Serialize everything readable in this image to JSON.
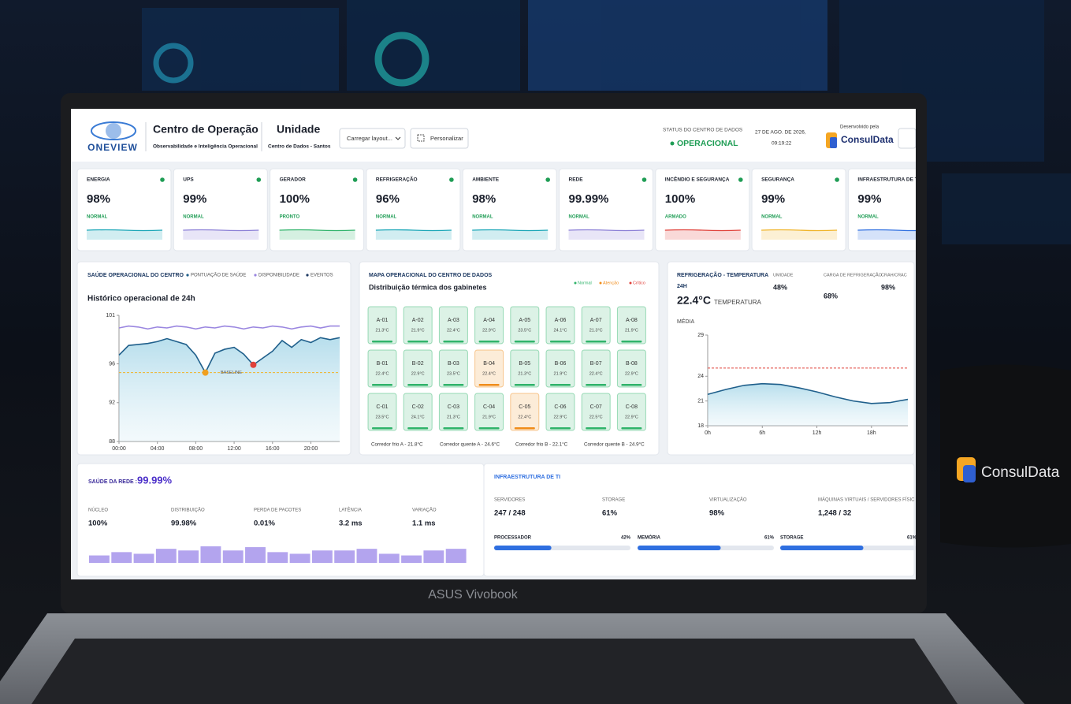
{
  "header": {
    "logo": "ONEVIEW",
    "title": "Centro de Operação",
    "subtitle": "Observabilidade e Inteligência Operacional",
    "unit_title": "Unidade",
    "unit_name": "Centro de Dados - Santos",
    "buttons": [
      "Carregar layout...",
      "Personalizar"
    ],
    "status_label": "STATUS DO CENTRO DE DADOS",
    "status": "OPERACIONAL",
    "date": "27 DE AGO. DE 2026,",
    "time": "09:19:22",
    "developer_label": "Desenvolvido pela",
    "developer": "ConsulData"
  },
  "kpis": [
    {
      "name": "ENERGIA",
      "value": "98%",
      "status": "NORMAL",
      "color": "#1aa6b7"
    },
    {
      "name": "UPS",
      "value": "99%",
      "status": "NORMAL",
      "color": "#8b7fd6"
    },
    {
      "name": "GERADOR",
      "value": "100%",
      "status": "PRONTO",
      "color": "#2fb36a"
    },
    {
      "name": "REFRIGERAÇÃO",
      "value": "96%",
      "status": "NORMAL",
      "color": "#1aa6b7"
    },
    {
      "name": "AMBIENTE",
      "value": "98%",
      "status": "NORMAL",
      "color": "#1aa6b7"
    },
    {
      "name": "REDE",
      "value": "99.99%",
      "status": "NORMAL",
      "color": "#8b7fd6"
    },
    {
      "name": "INCÊNDIO E SEGURANÇA",
      "value": "100%",
      "status": "ARMADO",
      "color": "#e0413a"
    },
    {
      "name": "SEGURANÇA",
      "value": "99%",
      "status": "NORMAL",
      "color": "#f0b429"
    },
    {
      "name": "INFRAESTRUTURA DE TI",
      "value": "99%",
      "status": "NORMAL",
      "color": "#2f6fe0"
    }
  ],
  "health": {
    "title": "SAÚDE OPERACIONAL DO CENTRO",
    "subtitle": "Histórico operacional de 24h",
    "chart": {
      "type": "line",
      "xlim": [
        0,
        23
      ],
      "ylim": [
        88,
        101
      ],
      "yticks": [
        88,
        92,
        96,
        101
      ],
      "xticks": [
        {
          "value": 0,
          "label": "00:00"
        },
        {
          "value": 4,
          "label": "04:00"
        },
        {
          "value": 8,
          "label": "08:00"
        },
        {
          "value": 12,
          "label": "12:00"
        },
        {
          "value": 16,
          "label": "16:00"
        },
        {
          "value": 20,
          "label": "20:00"
        }
      ],
      "x": [
        0,
        1,
        2,
        3,
        4,
        5,
        6,
        7,
        8,
        9,
        10,
        11,
        12,
        13,
        14,
        15,
        16,
        17,
        18,
        19,
        20,
        21,
        22,
        23
      ],
      "series": [
        {
          "name": "PONTUAÇÃO DE SAÚDE",
          "color": "#1f5f8b",
          "values": [
            96.9,
            97.9,
            98.0,
            98.1,
            98.3,
            98.6,
            98.3,
            98.0,
            96.9,
            95.1,
            97.1,
            97.5,
            97.7,
            97.0,
            95.9,
            96.6,
            97.3,
            98.4,
            97.7,
            98.5,
            98.2,
            98.7,
            98.5,
            98.7
          ]
        },
        {
          "name": "DISPONIBILIDADE",
          "color": "#9a86e0",
          "values": [
            99.7,
            99.9,
            99.8,
            99.6,
            99.8,
            99.7,
            99.9,
            99.8,
            99.6,
            99.8,
            99.7,
            99.9,
            99.8,
            99.6,
            99.8,
            99.7,
            99.9,
            99.8,
            99.6,
            99.8,
            99.9,
            99.7,
            99.9,
            99.9
          ]
        }
      ],
      "events": {
        "name": "EVENTOS",
        "color": "#1f3b63",
        "x": [
          9,
          14
        ],
        "values": [
          95.1,
          95.9
        ],
        "colors": [
          "#f0a020",
          "#e0413a"
        ]
      },
      "baseline": {
        "label": "BASELINE",
        "value": 95.1,
        "color": "#f0b429"
      }
    }
  },
  "map": {
    "title": "MAPA OPERACIONAL DO CENTRO DE DADOS",
    "subtitle": "Distribuição térmica dos gabinetes",
    "legend": [
      {
        "label": "Normal",
        "color": "#2fb36a"
      },
      {
        "label": "Atenção",
        "color": "#f08c1a"
      },
      {
        "label": "Crítico",
        "color": "#e0413a"
      }
    ],
    "racks": [
      {
        "id": "A-01",
        "temp": "21.3°C",
        "color": "#2fb36a"
      },
      {
        "id": "A-02",
        "temp": "21.9°C",
        "color": "#2fb36a"
      },
      {
        "id": "A-03",
        "temp": "22.4°C",
        "color": "#2fb36a"
      },
      {
        "id": "A-04",
        "temp": "22.9°C",
        "color": "#2fb36a"
      },
      {
        "id": "A-05",
        "temp": "23.5°C",
        "color": "#2fb36a"
      },
      {
        "id": "A-06",
        "temp": "24.1°C",
        "color": "#2fb36a"
      },
      {
        "id": "A-07",
        "temp": "21.3°C",
        "color": "#2fb36a"
      },
      {
        "id": "A-08",
        "temp": "21.9°C",
        "color": "#2fb36a"
      },
      {
        "id": "B-01",
        "temp": "22.4°C",
        "color": "#2fb36a"
      },
      {
        "id": "B-02",
        "temp": "22.9°C",
        "color": "#2fb36a"
      },
      {
        "id": "B-03",
        "temp": "23.5°C",
        "color": "#2fb36a"
      },
      {
        "id": "B-04",
        "temp": "22.4°C",
        "color": "#f08c1a"
      },
      {
        "id": "B-05",
        "temp": "21.3°C",
        "color": "#2fb36a"
      },
      {
        "id": "B-06",
        "temp": "21.9°C",
        "color": "#2fb36a"
      },
      {
        "id": "B-07",
        "temp": "22.4°C",
        "color": "#2fb36a"
      },
      {
        "id": "B-08",
        "temp": "22.9°C",
        "color": "#2fb36a"
      },
      {
        "id": "C-01",
        "temp": "23.5°C",
        "color": "#2fb36a"
      },
      {
        "id": "C-02",
        "temp": "24.1°C",
        "color": "#2fb36a"
      },
      {
        "id": "C-03",
        "temp": "21.3°C",
        "color": "#2fb36a"
      },
      {
        "id": "C-04",
        "temp": "21.9°C",
        "color": "#2fb36a"
      },
      {
        "id": "C-05",
        "temp": "22.4°C",
        "color": "#f08c1a"
      },
      {
        "id": "C-06",
        "temp": "22.9°C",
        "color": "#2fb36a"
      },
      {
        "id": "C-07",
        "temp": "22.5°C",
        "color": "#2fb36a"
      },
      {
        "id": "C-08",
        "temp": "22.9°C",
        "color": "#2fb36a"
      }
    ],
    "aisles": [
      "Corredor frio A - 21.8°C",
      "Corredor quente A - 24.6°C",
      "Corredor frio B - 22.1°C",
      "Corredor quente B - 24.9°C"
    ]
  },
  "cooling": {
    "title": "REFRIGERAÇÃO - TEMPERATURA",
    "period": "24H",
    "temperature": "22.4°C",
    "temperature_label": "TEMPERATURA",
    "average_label": "MÉDIA",
    "stats": [
      {
        "label": "UMIDADE",
        "value": "48%"
      },
      {
        "label": "CARGA DE REFRIGERAÇÃO",
        "value": "68%"
      },
      {
        "label": "CRAH/CRAC",
        "value": "98%"
      }
    ],
    "chart": {
      "type": "line",
      "color": "#1f5f8b",
      "xlim": [
        0,
        22
      ],
      "ylim": [
        18,
        29
      ],
      "yticks": [
        18,
        21,
        24,
        29
      ],
      "xticks": [
        {
          "value": 0,
          "label": "0h"
        },
        {
          "value": 6,
          "label": "6h"
        },
        {
          "value": 12,
          "label": "12h"
        },
        {
          "value": 18,
          "label": "18h"
        }
      ],
      "x": [
        0,
        2,
        4,
        6,
        8,
        10,
        12,
        14,
        16,
        18,
        20,
        22
      ],
      "values": [
        21.8,
        22.4,
        22.9,
        23.1,
        23.0,
        22.6,
        22.1,
        21.5,
        21.0,
        20.7,
        20.8,
        21.2
      ],
      "threshold": 25,
      "threshold_color": "#e0413a"
    }
  },
  "network": {
    "title": "SAÚDE DA REDE :",
    "value": "99.99%",
    "stats": [
      {
        "label": "NÚCLEO",
        "value": "100%"
      },
      {
        "label": "DISTRIBUIÇÃO",
        "value": "99.98%"
      },
      {
        "label": "PERDA DE PACOTES",
        "value": "0.01%"
      },
      {
        "label": "LATÊNCIA",
        "value": "3.2 ms"
      },
      {
        "label": "VARIAÇÃO",
        "value": "1.1 ms"
      }
    ],
    "chart": {
      "type": "bar",
      "color": "#b3a4ee",
      "ylim": [
        0,
        20
      ],
      "values": [
        9,
        13,
        11,
        17,
        15,
        20,
        15,
        19,
        13,
        11,
        15,
        15,
        17,
        11,
        9,
        15,
        17
      ]
    }
  },
  "infra": {
    "title": "INFRAESTRUTURA DE TI",
    "color": "#2f6fe0",
    "stats": [
      {
        "label": "SERVIDORES",
        "value": "247 / 248"
      },
      {
        "label": "STORAGE",
        "value": "61%"
      },
      {
        "label": "VIRTUALIZAÇÃO",
        "value": "98%"
      },
      {
        "label": "MÁQUINAS VIRTUAIS / SERVIDORES FÍSIC",
        "value": "1,248 / 32"
      }
    ],
    "progress": [
      {
        "label": "PROCESSADOR",
        "value": 42,
        "value_label": "42%"
      },
      {
        "label": "MEMÓRIA",
        "value": 61,
        "value_label": "61%"
      },
      {
        "label": "STORAGE",
        "value": 61,
        "value_label": "61%"
      }
    ]
  },
  "device": {
    "laptop": "ASUS Vivobook",
    "mug": "ConsulData"
  }
}
